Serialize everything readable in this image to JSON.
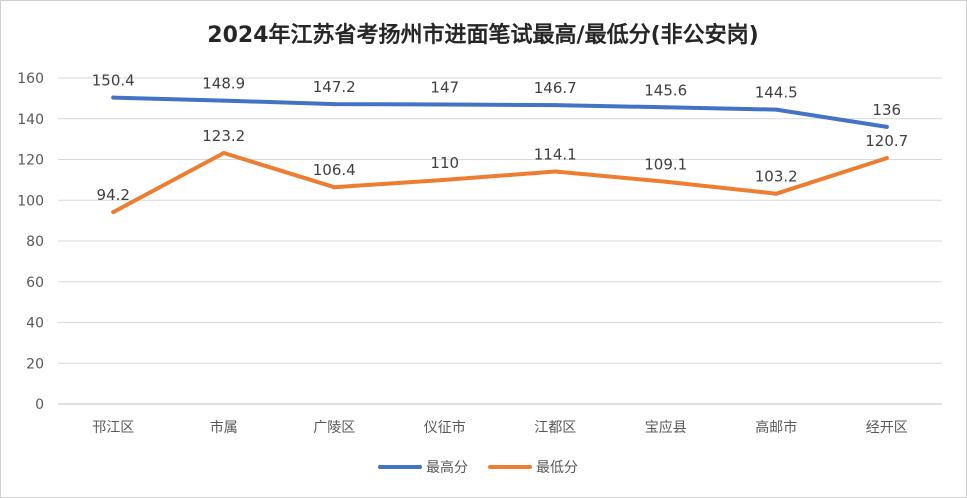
{
  "chart_data": {
    "type": "line",
    "title": "2024年江苏省考扬州市进面笔试最高/最低分(非公安岗)",
    "categories": [
      "邗江区",
      "市属",
      "广陵区",
      "仪征市",
      "江都区",
      "宝应县",
      "高邮市",
      "经开区"
    ],
    "series": [
      {
        "name": "最高分",
        "color": "#4472C4",
        "values": [
          150.4,
          148.9,
          147.2,
          147,
          146.7,
          145.6,
          144.5,
          136
        ]
      },
      {
        "name": "最低分",
        "color": "#ED7D31",
        "values": [
          94.2,
          123.2,
          106.4,
          110,
          114.1,
          109.1,
          103.2,
          120.7
        ]
      }
    ],
    "yticks": [
      0,
      20,
      40,
      60,
      80,
      100,
      120,
      140,
      160
    ],
    "ylim": [
      0,
      160
    ],
    "grid": true,
    "legend": "bottom"
  }
}
